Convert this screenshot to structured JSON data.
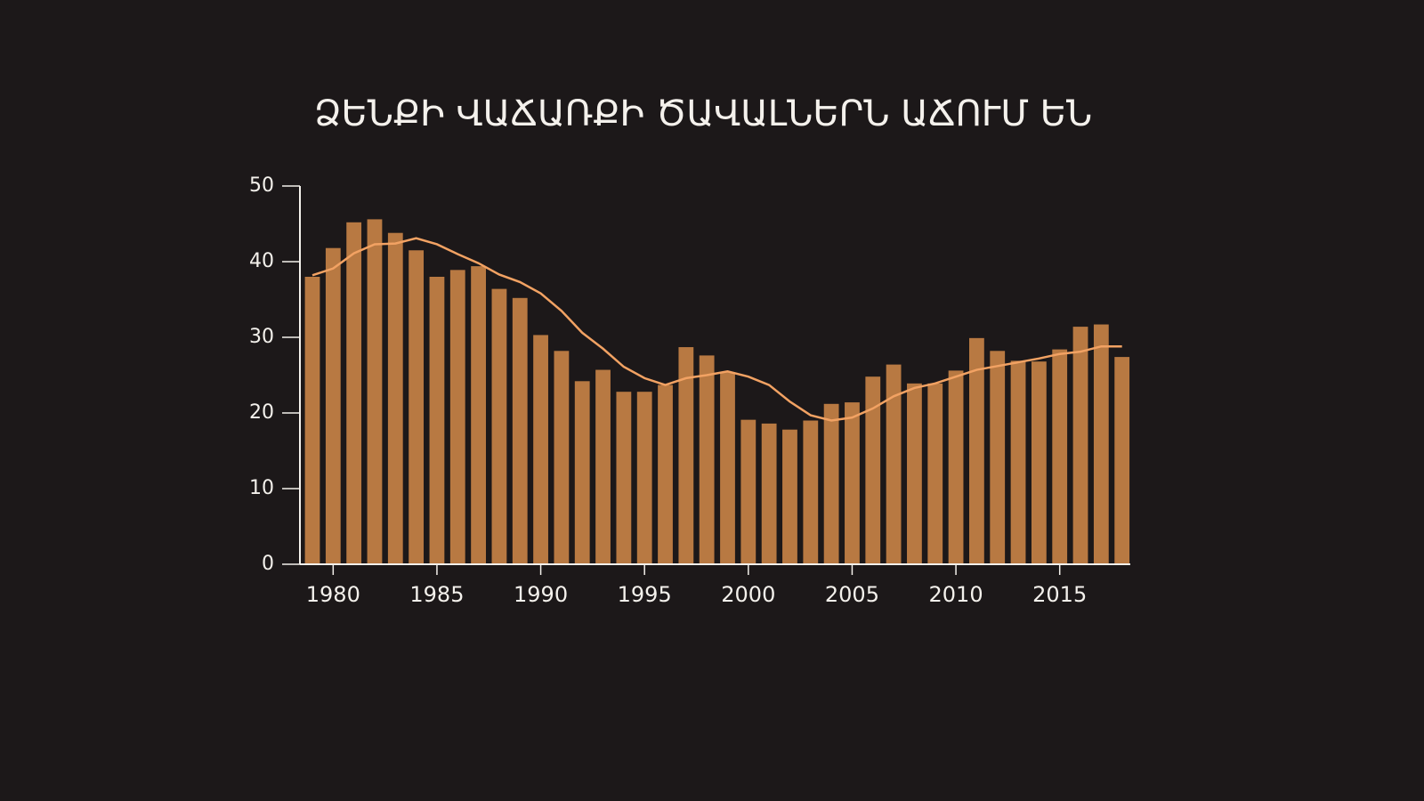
{
  "chart_data": {
    "type": "bar",
    "title": "ՁԵՆՔԻ ՎԱՃԱՌՔԻ ԾԱՎԱԼՆԵՐՆ ԱՃՈՒՄ ԵՆ",
    "x": [
      1979,
      1980,
      1981,
      1982,
      1983,
      1984,
      1985,
      1986,
      1987,
      1988,
      1989,
      1990,
      1991,
      1992,
      1993,
      1994,
      1995,
      1996,
      1997,
      1998,
      1999,
      2000,
      2001,
      2002,
      2003,
      2004,
      2005,
      2006,
      2007,
      2008,
      2009,
      2010,
      2011,
      2012,
      2013,
      2014,
      2015,
      2016,
      2017,
      2018
    ],
    "series": [
      {
        "type": "bar",
        "color": "#b87942",
        "values": [
          38.0,
          41.8,
          45.2,
          45.6,
          43.8,
          41.5,
          38.0,
          38.9,
          39.4,
          36.4,
          35.2,
          30.3,
          28.2,
          24.2,
          25.7,
          22.8,
          22.8,
          23.7,
          28.7,
          27.6,
          25.4,
          19.1,
          18.6,
          17.8,
          19.0,
          21.2,
          21.4,
          24.8,
          26.4,
          23.9,
          23.9,
          25.6,
          29.9,
          28.2,
          26.9,
          26.8,
          28.4,
          31.4,
          31.7,
          27.4
        ]
      },
      {
        "type": "line",
        "color": "#f2a263",
        "values": [
          38.2,
          39.1,
          41.1,
          42.3,
          42.4,
          43.1,
          42.3,
          41.0,
          39.8,
          38.3,
          37.3,
          35.8,
          33.5,
          30.6,
          28.5,
          26.1,
          24.6,
          23.7,
          24.6,
          25.0,
          25.5,
          24.8,
          23.7,
          21.5,
          19.7,
          19.0,
          19.4,
          20.6,
          22.2,
          23.3,
          23.9,
          24.8,
          25.7,
          26.2,
          26.7,
          27.2,
          27.8,
          28.1,
          28.8,
          28.8
        ]
      }
    ],
    "xlim": [
      1978.4,
      2018.4
    ],
    "xticks": [
      1980,
      1985,
      1990,
      1995,
      2000,
      2005,
      2010,
      2015
    ],
    "ylim": [
      0,
      50
    ],
    "yticks": [
      0,
      10,
      20,
      30,
      40,
      50
    ]
  }
}
